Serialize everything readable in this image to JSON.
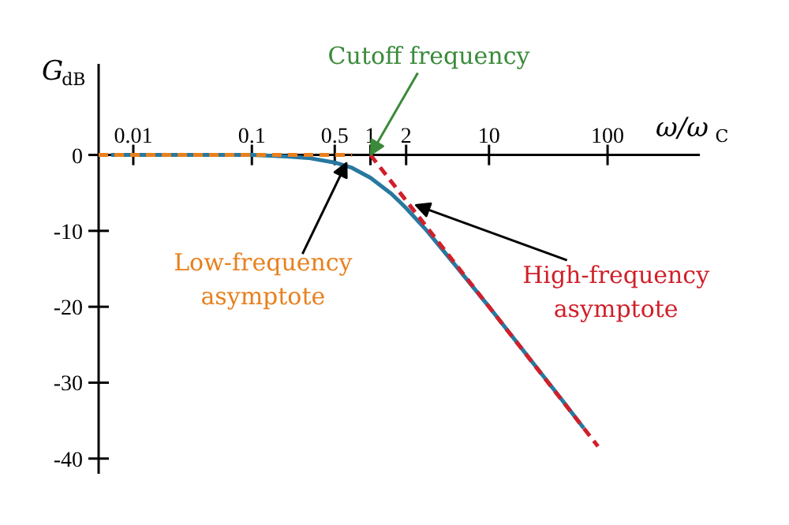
{
  "chart_data": {
    "type": "line",
    "xlabel": "ω/ω$_{C}$",
    "ylabel": "G$_{dB}$",
    "log": "x",
    "xlim": [
      0.0051,
      600
    ],
    "ylim": [
      -42,
      12
    ],
    "xticks": [
      0.01,
      0.1,
      0.5,
      1,
      2,
      10,
      100
    ],
    "yticks": [
      0,
      -10,
      -20,
      -30,
      -40
    ],
    "series": [
      {
        "color": "#e8801e",
        "line_style": "dashed",
        "x": [
          0.0051,
          0.7
        ],
        "values": [
          0,
          0
        ]
      },
      {
        "color": "#d0202a",
        "line_style": "dashed",
        "x": [
          1,
          83
        ],
        "values": [
          0,
          -38.4
        ]
      },
      {
        "color": "#2878a0",
        "line_style": "solid",
        "x": [
          0.0065,
          0.01,
          0.05,
          0.1,
          0.2,
          0.3,
          0.5,
          0.7,
          1,
          1.5,
          2,
          3,
          5,
          10,
          20,
          40,
          63
        ],
        "values": [
          0,
          0,
          0,
          0,
          -0.2,
          -0.4,
          -1,
          -1.7,
          -3,
          -5.1,
          -7,
          -10,
          -14.2,
          -20,
          -26,
          -32,
          -36
        ]
      }
    ],
    "annotations": [
      {
        "text": "Cutoff frequency",
        "x": 1,
        "y": 0
      },
      {
        "text": "Low-frequency\nasymptote",
        "x": 0.63,
        "y": -1
      },
      {
        "text": "High-frequency\nasymptote",
        "x": 2.4,
        "y": -6.6
      }
    ]
  }
}
